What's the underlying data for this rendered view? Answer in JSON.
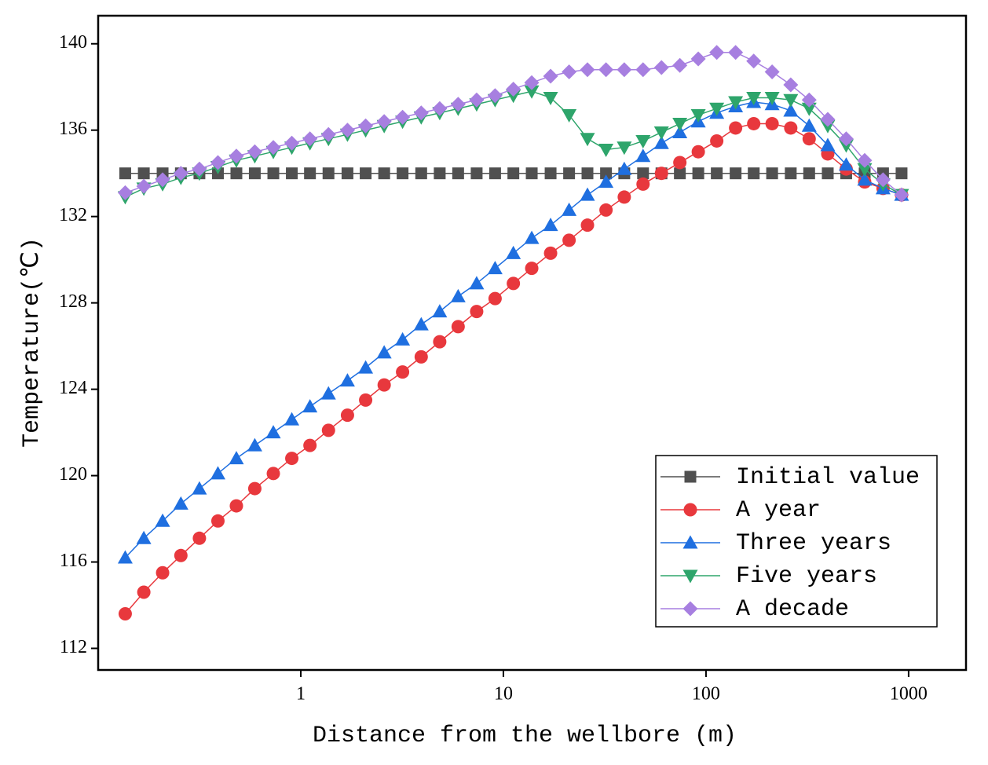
{
  "chart_data": {
    "type": "line",
    "xlabel": "Distance from the wellbore (m)",
    "ylabel": "Temperature(℃)",
    "xscale": "log",
    "x": [
      0.136,
      0.168,
      0.208,
      0.256,
      0.316,
      0.39,
      0.481,
      0.593,
      0.732,
      0.903,
      1.11,
      1.37,
      1.7,
      2.09,
      2.58,
      3.18,
      3.93,
      4.85,
      5.98,
      7.38,
      9.1,
      11.2,
      13.8,
      17.1,
      21.1,
      26.0,
      32.1,
      39.5,
      48.9,
      60.3,
      74.3,
      91.6,
      113,
      140,
      172,
      212,
      262,
      323,
      399,
      492,
      607,
      748,
      923
    ],
    "series": [
      {
        "name": "Initial value",
        "color": "#505050",
        "marker": "square",
        "values": [
          134,
          134,
          134,
          134,
          134,
          134,
          134,
          134,
          134,
          134,
          134,
          134,
          134,
          134,
          134,
          134,
          134,
          134,
          134,
          134,
          134,
          134,
          134,
          134,
          134,
          134,
          134,
          134,
          134,
          134,
          134,
          134,
          134,
          134,
          134,
          134,
          134,
          134,
          134,
          134,
          134,
          134,
          134
        ]
      },
      {
        "name": "A year",
        "color": "#e8383d",
        "marker": "circle",
        "values": [
          113.6,
          114.6,
          115.5,
          116.3,
          117.1,
          117.9,
          118.6,
          119.4,
          120.1,
          120.8,
          121.4,
          122.1,
          122.8,
          123.5,
          124.2,
          124.8,
          125.5,
          126.2,
          126.9,
          127.6,
          128.2,
          128.9,
          129.6,
          130.3,
          130.9,
          131.6,
          132.3,
          132.9,
          133.5,
          134.0,
          134.5,
          135.0,
          135.5,
          136.1,
          136.3,
          136.3,
          136.1,
          135.6,
          134.9,
          134.2,
          133.6,
          133.3,
          133.0
        ]
      },
      {
        "name": "Three years",
        "color": "#1f6fe0",
        "marker": "triangle-up",
        "values": [
          116.2,
          117.1,
          117.9,
          118.7,
          119.4,
          120.1,
          120.8,
          121.4,
          122.0,
          122.6,
          123.2,
          123.8,
          124.4,
          125.0,
          125.7,
          126.3,
          127.0,
          127.6,
          128.3,
          128.9,
          129.6,
          130.3,
          131.0,
          131.6,
          132.3,
          133.0,
          133.6,
          134.2,
          134.8,
          135.4,
          135.9,
          136.4,
          136.8,
          137.1,
          137.3,
          137.2,
          136.9,
          136.2,
          135.3,
          134.4,
          133.7,
          133.3,
          133.0
        ]
      },
      {
        "name": "Five years",
        "color": "#2ea56b",
        "marker": "triangle-down",
        "values": [
          132.9,
          133.3,
          133.5,
          133.8,
          134.0,
          134.3,
          134.6,
          134.8,
          135.0,
          135.2,
          135.4,
          135.6,
          135.8,
          136.0,
          136.2,
          136.4,
          136.6,
          136.8,
          137.0,
          137.2,
          137.4,
          137.6,
          137.8,
          137.5,
          136.7,
          135.6,
          135.1,
          135.2,
          135.5,
          135.9,
          136.3,
          136.7,
          137.0,
          137.3,
          137.5,
          137.5,
          137.4,
          137.0,
          136.2,
          135.3,
          134.2,
          133.5,
          133.0
        ]
      },
      {
        "name": "A decade",
        "color": "#a77fe0",
        "marker": "diamond",
        "values": [
          133.1,
          133.4,
          133.7,
          134.0,
          134.2,
          134.5,
          134.8,
          135.0,
          135.2,
          135.4,
          135.6,
          135.8,
          136.0,
          136.2,
          136.4,
          136.6,
          136.8,
          137.0,
          137.2,
          137.4,
          137.6,
          137.9,
          138.2,
          138.5,
          138.7,
          138.8,
          138.8,
          138.8,
          138.8,
          138.9,
          139.0,
          139.3,
          139.6,
          139.6,
          139.2,
          138.7,
          138.1,
          137.4,
          136.5,
          135.6,
          134.6,
          133.7,
          133.0
        ]
      }
    ],
    "xlim": [
      0.1,
      1920
    ],
    "ylim": [
      111,
      141.3
    ],
    "xticks": [
      1,
      10,
      100,
      1000
    ],
    "yticks": [
      112,
      116,
      120,
      124,
      128,
      132,
      136,
      140
    ],
    "legend": "lower right"
  }
}
